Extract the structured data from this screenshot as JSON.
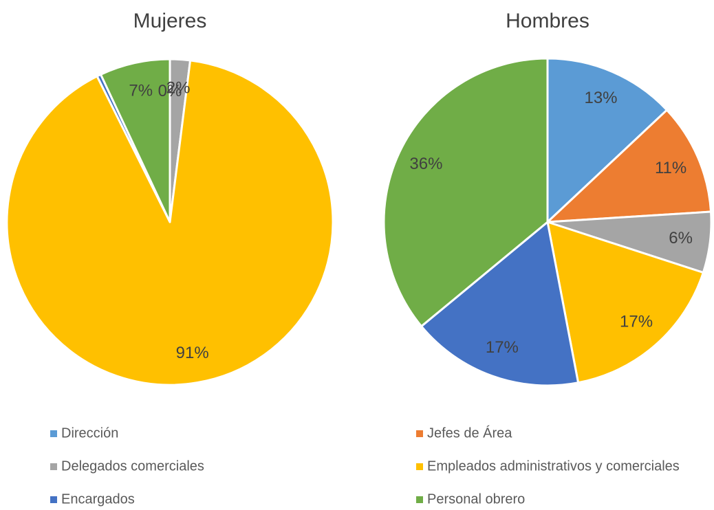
{
  "categories": [
    "Dirección",
    "Jefes de Área",
    "Delegados comerciales",
    "Empleados administrativos y comerciales",
    "Encargados",
    "Personal obrero"
  ],
  "colors": [
    "#5b9bd5",
    "#ed7d31",
    "#a5a5a5",
    "#ffc000",
    "#4472c4",
    "#70ad47"
  ],
  "chart_data": [
    {
      "type": "pie",
      "title": "Mujeres",
      "values": [
        0,
        0,
        2,
        91,
        0.4,
        7
      ],
      "value_labels": [
        "0%",
        null,
        "2%",
        "91%",
        null,
        "7%"
      ]
    },
    {
      "type": "pie",
      "title": "Hombres",
      "values": [
        13,
        11,
        6,
        17,
        17,
        36
      ],
      "value_labels": [
        "13%",
        "11%",
        "6%",
        "17%",
        "17%",
        "36%"
      ]
    }
  ]
}
